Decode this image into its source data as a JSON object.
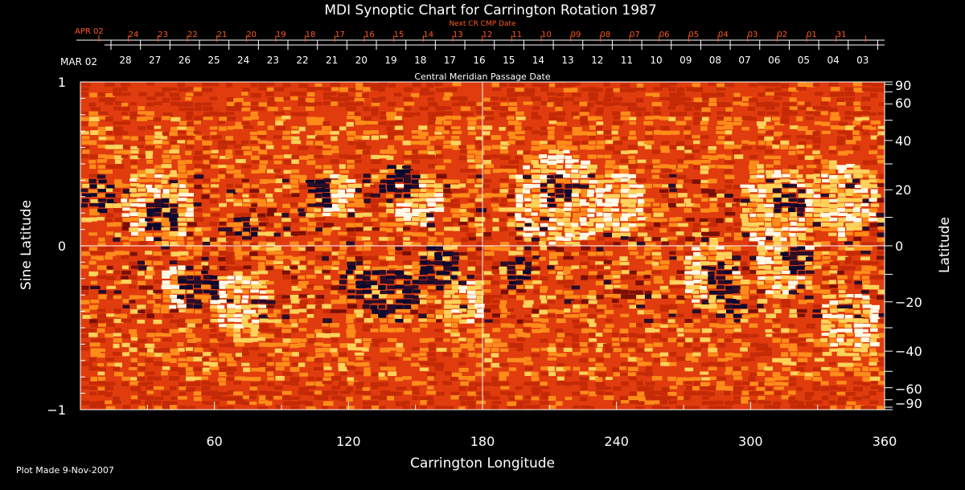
{
  "chart_data": {
    "type": "heatmap",
    "title": "MDI Synoptic Chart for Carrington Rotation 1987",
    "xlabel": "Carrington Longitude",
    "ylabel_left": "Sine Latitude",
    "ylabel_right": "Latitude",
    "xlim": [
      0,
      360
    ],
    "ylim": [
      -1,
      1
    ],
    "x_ticks": [
      60,
      120,
      180,
      240,
      300,
      360
    ],
    "y_ticks_left": [
      {
        "value": 1,
        "label": "1"
      },
      {
        "value": 0,
        "label": "0"
      },
      {
        "value": -1,
        "label": "−1"
      }
    ],
    "y_ticks_right": [
      {
        "deg": 90,
        "label": "90"
      },
      {
        "deg": 60,
        "label": "60"
      },
      {
        "deg": 40,
        "label": "40"
      },
      {
        "deg": 20,
        "label": "20"
      },
      {
        "deg": 0,
        "label": "0"
      },
      {
        "deg": -20,
        "label": "−20"
      },
      {
        "deg": -40,
        "label": "−40"
      },
      {
        "deg": -60,
        "label": "−60"
      },
      {
        "deg": -90,
        "label": "−90"
      }
    ],
    "top_axis_title": "Central Meridian Passage Date",
    "top_axis_start_label": "MAR 02",
    "top_axis_dates": [
      "28",
      "27",
      "26",
      "25",
      "24",
      "23",
      "22",
      "21",
      "20",
      "19",
      "18",
      "17",
      "16",
      "15",
      "14",
      "13",
      "12",
      "11",
      "10",
      "09",
      "08",
      "07",
      "06",
      "05",
      "04",
      "03"
    ],
    "next_cr_title": "Next CR CMP Date",
    "next_cr_start_label": "APR 02",
    "next_cr_dates": [
      "24",
      "23",
      "22",
      "21",
      "20",
      "19",
      "18",
      "17",
      "16",
      "15",
      "14",
      "13",
      "12",
      "11",
      "10",
      "09",
      "08",
      "07",
      "06",
      "05",
      "04",
      "03",
      "02",
      "01",
      "31"
    ],
    "reference_lines": {
      "x": 180,
      "y": 0
    },
    "colormap": [
      "#0b0930",
      "#2a0d28",
      "#7a0f05",
      "#c42a05",
      "#ff4a0a",
      "#ff8c1a",
      "#ffd25a",
      "#fffbe6"
    ],
    "grid": false
  },
  "footer": {
    "plot_made": "Plot Made  9-Nov-2007"
  },
  "colors": {
    "background": "#000000",
    "foreground": "#ffffff",
    "next_cr_color": "#ff5a1f"
  }
}
